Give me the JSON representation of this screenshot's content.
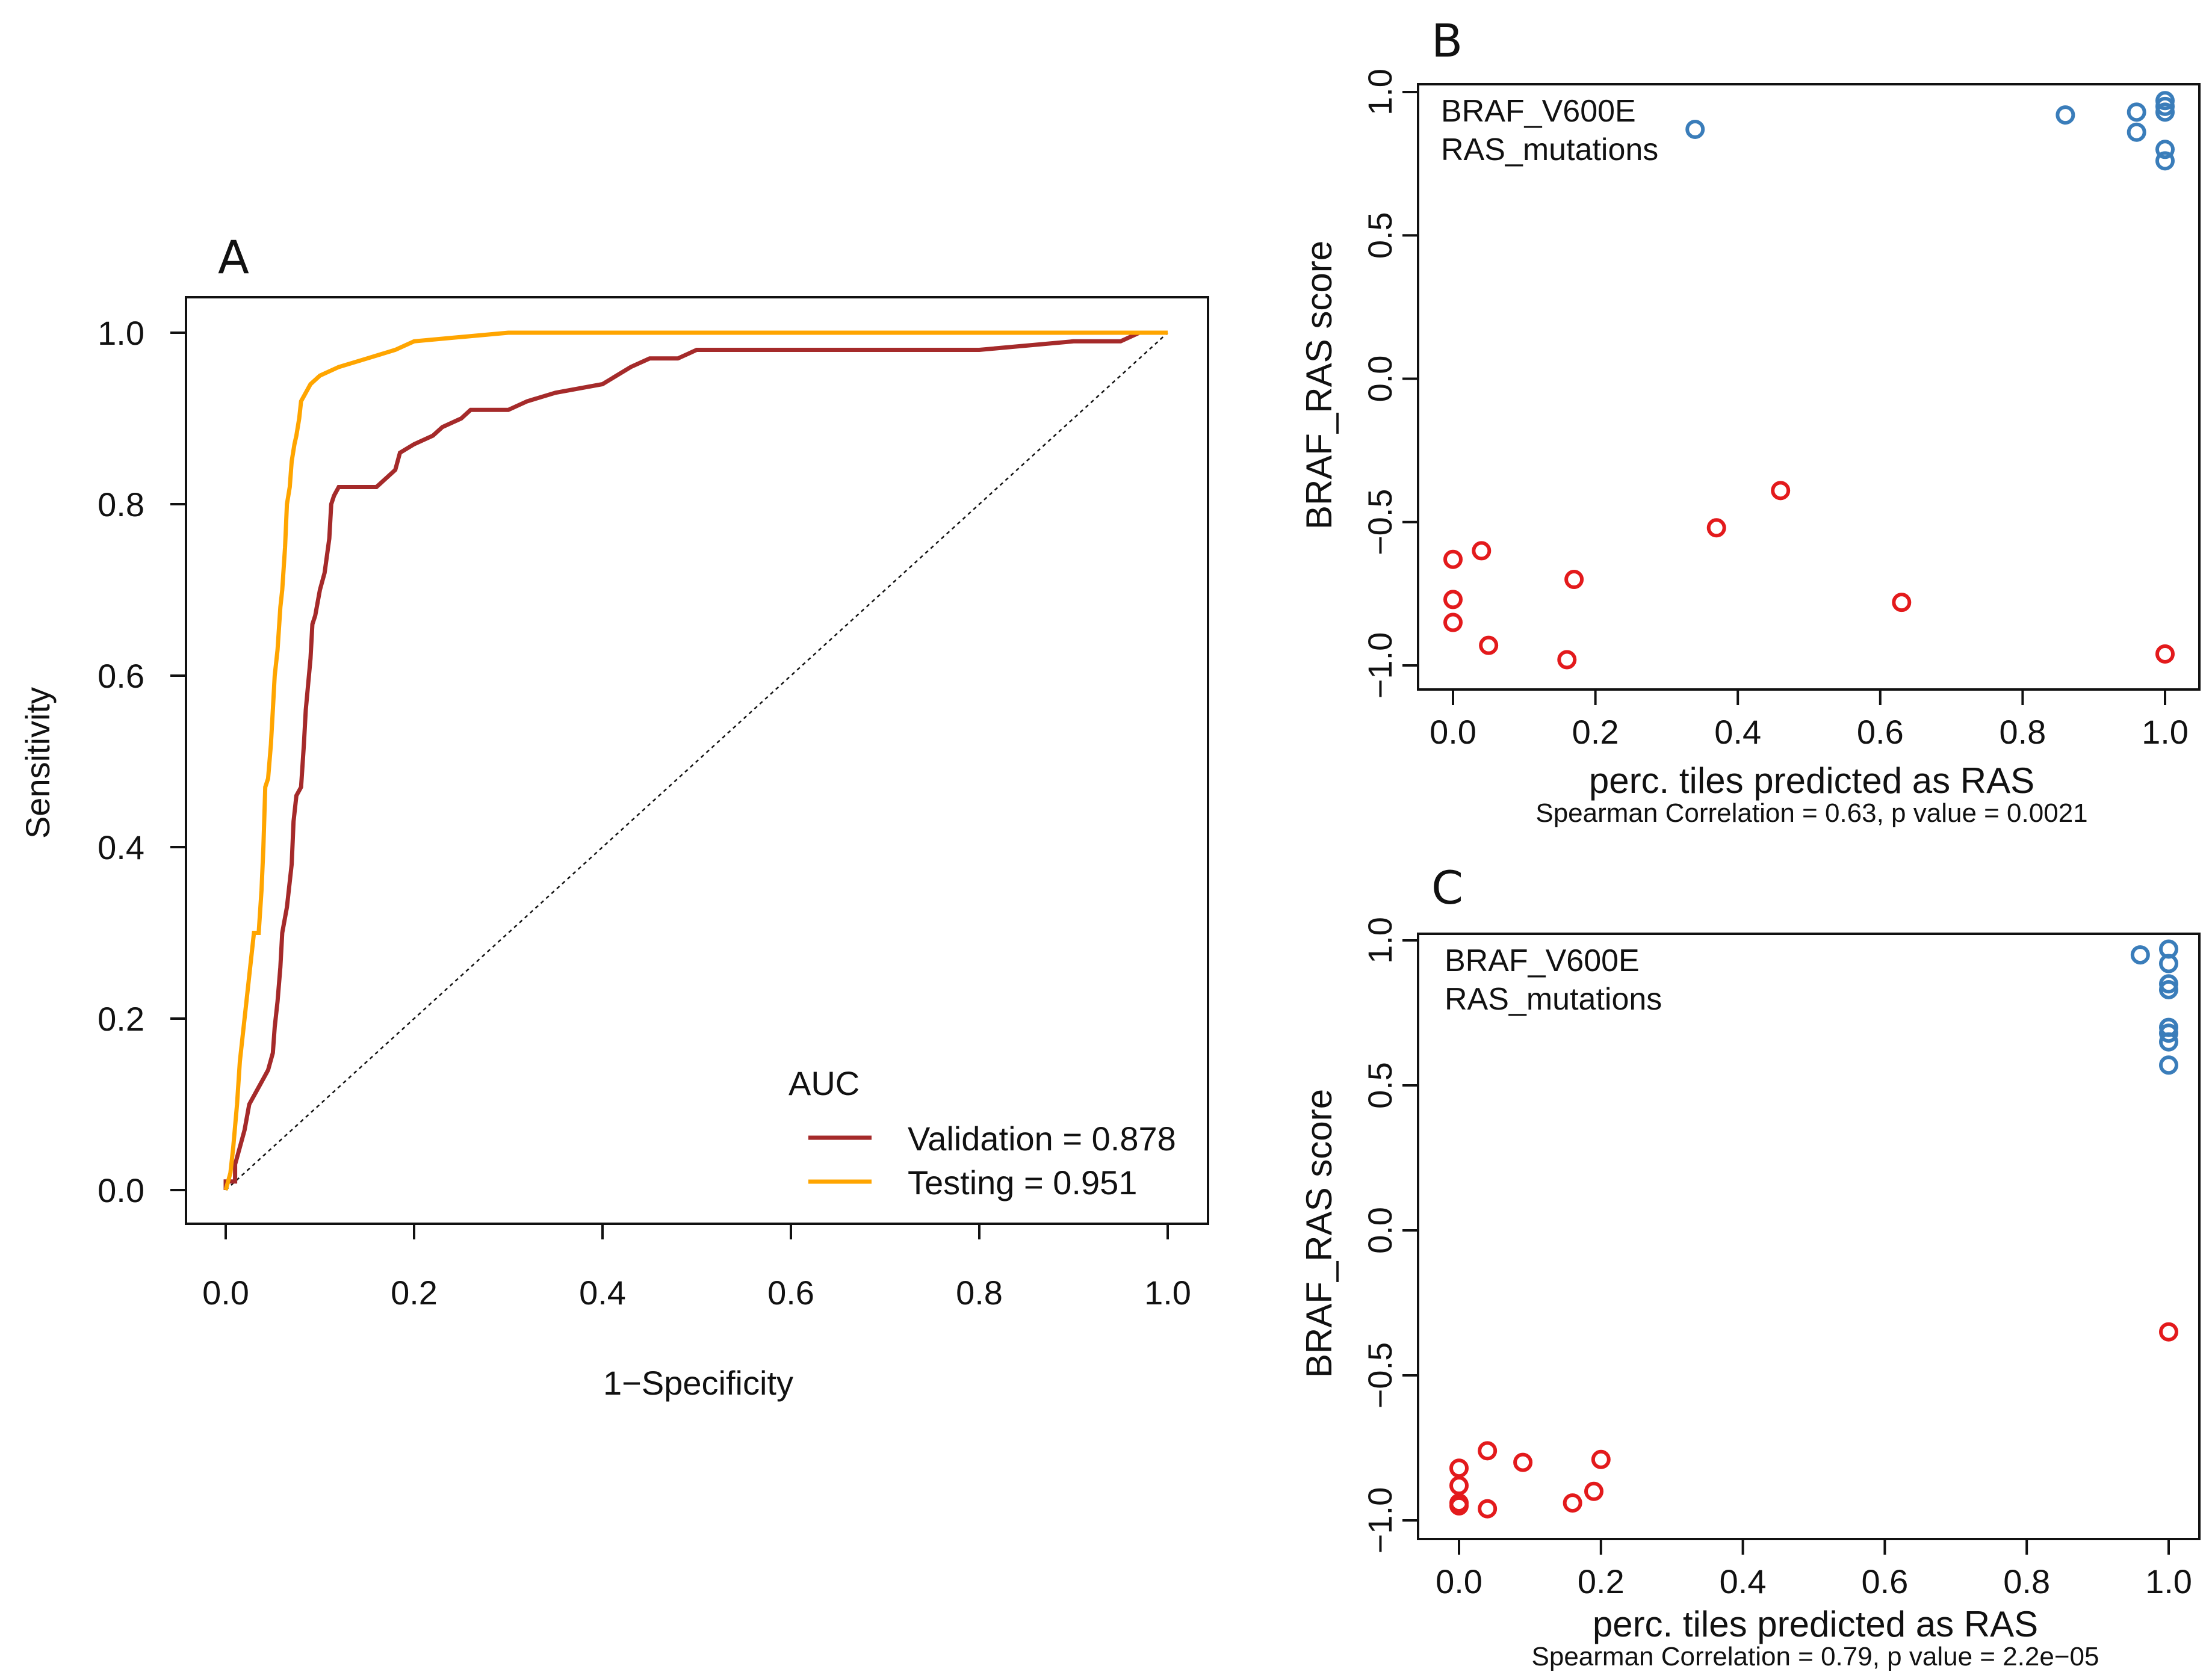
{
  "colors": {
    "validation": "#A52A2A",
    "testing": "#FFA500",
    "braf": "#E31A1C",
    "ras": "#3A7DBA",
    "axis": "#111111"
  },
  "panels": {
    "a": "A",
    "b": "B",
    "c": "C"
  },
  "chart_data": [
    {
      "id": "roc",
      "type": "line",
      "panel": "A",
      "xlabel": "1−Specificity",
      "ylabel": "Sensitivity",
      "xlim": [
        0,
        1
      ],
      "ylim": [
        0,
        1
      ],
      "xticks": [
        "0.0",
        "0.2",
        "0.4",
        "0.6",
        "0.8",
        "1.0"
      ],
      "yticks": [
        "0.0",
        "0.2",
        "0.4",
        "0.6",
        "0.8",
        "1.0"
      ],
      "legend_title": "AUC",
      "legend_position": "bottom-right",
      "reference_line": "diagonal-dotted",
      "series": [
        {
          "name": "Validation = 0.878",
          "color": "#A52A2A",
          "points": [
            [
              0,
              0
            ],
            [
              0,
              0.01
            ],
            [
              0.01,
              0.01
            ],
            [
              0.01,
              0.03
            ],
            [
              0.015,
              0.05
            ],
            [
              0.02,
              0.07
            ],
            [
              0.025,
              0.1
            ],
            [
              0.03,
              0.11
            ],
            [
              0.035,
              0.12
            ],
            [
              0.04,
              0.13
            ],
            [
              0.045,
              0.14
            ],
            [
              0.05,
              0.16
            ],
            [
              0.052,
              0.19
            ],
            [
              0.055,
              0.22
            ],
            [
              0.058,
              0.26
            ],
            [
              0.06,
              0.3
            ],
            [
              0.065,
              0.33
            ],
            [
              0.07,
              0.38
            ],
            [
              0.072,
              0.43
            ],
            [
              0.075,
              0.46
            ],
            [
              0.08,
              0.47
            ],
            [
              0.083,
              0.52
            ],
            [
              0.085,
              0.56
            ],
            [
              0.09,
              0.62
            ],
            [
              0.092,
              0.66
            ],
            [
              0.095,
              0.67
            ],
            [
              0.1,
              0.7
            ],
            [
              0.105,
              0.72
            ],
            [
              0.11,
              0.76
            ],
            [
              0.112,
              0.8
            ],
            [
              0.115,
              0.81
            ],
            [
              0.12,
              0.82
            ],
            [
              0.13,
              0.82
            ],
            [
              0.15,
              0.82
            ],
            [
              0.16,
              0.82
            ],
            [
              0.17,
              0.83
            ],
            [
              0.18,
              0.84
            ],
            [
              0.185,
              0.86
            ],
            [
              0.2,
              0.87
            ],
            [
              0.22,
              0.88
            ],
            [
              0.23,
              0.89
            ],
            [
              0.25,
              0.9
            ],
            [
              0.26,
              0.91
            ],
            [
              0.3,
              0.91
            ],
            [
              0.32,
              0.92
            ],
            [
              0.35,
              0.93
            ],
            [
              0.4,
              0.94
            ],
            [
              0.43,
              0.96
            ],
            [
              0.45,
              0.97
            ],
            [
              0.48,
              0.97
            ],
            [
              0.5,
              0.98
            ],
            [
              0.6,
              0.98
            ],
            [
              0.8,
              0.98
            ],
            [
              0.9,
              0.99
            ],
            [
              0.95,
              0.99
            ],
            [
              0.97,
              1.0
            ],
            [
              1,
              1
            ]
          ]
        },
        {
          "name": "Testing = 0.951",
          "color": "#FFA500",
          "points": [
            [
              0,
              0
            ],
            [
              0.005,
              0.02
            ],
            [
              0.008,
              0.05
            ],
            [
              0.012,
              0.1
            ],
            [
              0.015,
              0.15
            ],
            [
              0.02,
              0.2
            ],
            [
              0.025,
              0.25
            ],
            [
              0.03,
              0.3
            ],
            [
              0.035,
              0.3
            ],
            [
              0.038,
              0.35
            ],
            [
              0.04,
              0.4
            ],
            [
              0.042,
              0.47
            ],
            [
              0.045,
              0.48
            ],
            [
              0.048,
              0.52
            ],
            [
              0.05,
              0.56
            ],
            [
              0.052,
              0.6
            ],
            [
              0.055,
              0.63
            ],
            [
              0.058,
              0.68
            ],
            [
              0.06,
              0.7
            ],
            [
              0.063,
              0.75
            ],
            [
              0.065,
              0.8
            ],
            [
              0.068,
              0.82
            ],
            [
              0.07,
              0.85
            ],
            [
              0.073,
              0.87
            ],
            [
              0.075,
              0.88
            ],
            [
              0.078,
              0.9
            ],
            [
              0.08,
              0.92
            ],
            [
              0.085,
              0.93
            ],
            [
              0.09,
              0.94
            ],
            [
              0.1,
              0.95
            ],
            [
              0.12,
              0.96
            ],
            [
              0.15,
              0.97
            ],
            [
              0.18,
              0.98
            ],
            [
              0.2,
              0.99
            ],
            [
              0.25,
              0.995
            ],
            [
              0.3,
              1.0
            ],
            [
              1,
              1
            ]
          ]
        }
      ]
    },
    {
      "id": "scatterB",
      "type": "scatter",
      "panel": "B",
      "xlabel": "perc. tiles predicted as RAS",
      "ylabel": "BRAF_RAS score",
      "subtitle": "Spearman Correlation = 0.63, p value = 0.0021",
      "xlim": [
        0,
        1
      ],
      "ylim": [
        -1,
        1
      ],
      "xticks": [
        "0.0",
        "0.2",
        "0.4",
        "0.6",
        "0.8",
        "1.0"
      ],
      "yticks": [
        "−1.0",
        "−0.5",
        "0.0",
        "0.5",
        "1.0"
      ],
      "legend_position": "top-left",
      "series": [
        {
          "name": "BRAF_V600E",
          "color": "#E31A1C",
          "points": [
            [
              0,
              -0.63
            ],
            [
              0.04,
              -0.6
            ],
            [
              0,
              -0.77
            ],
            [
              0,
              -0.85
            ],
            [
              0.05,
              -0.93
            ],
            [
              0.16,
              -0.98
            ],
            [
              0.17,
              -0.7
            ],
            [
              0.37,
              -0.52
            ],
            [
              0.46,
              -0.39
            ],
            [
              0.63,
              -0.78
            ],
            [
              1,
              -0.96
            ]
          ]
        },
        {
          "name": "RAS_mutations",
          "color": "#3A7DBA",
          "points": [
            [
              0.34,
              0.87
            ],
            [
              0.86,
              0.92
            ],
            [
              0.96,
              0.93
            ],
            [
              0.96,
              0.86
            ],
            [
              1,
              0.97
            ],
            [
              1,
              0.95
            ],
            [
              1,
              0.93
            ],
            [
              1,
              0.8
            ],
            [
              1,
              0.76
            ]
          ]
        }
      ]
    },
    {
      "id": "scatterC",
      "type": "scatter",
      "panel": "C",
      "xlabel": "perc. tiles predicted as RAS",
      "ylabel": "BRAF_RAS score",
      "subtitle": "Spearman Correlation = 0.79, p value = 2.2e−05",
      "xlim": [
        0,
        1
      ],
      "ylim": [
        -1,
        1
      ],
      "xticks": [
        "0.0",
        "0.2",
        "0.4",
        "0.6",
        "0.8",
        "1.0"
      ],
      "yticks": [
        "−1.0",
        "−0.5",
        "0.0",
        "0.5",
        "1.0"
      ],
      "legend_position": "top-left",
      "series": [
        {
          "name": "BRAF_V600E",
          "color": "#E31A1C",
          "points": [
            [
              0,
              -0.82
            ],
            [
              0,
              -0.88
            ],
            [
              0,
              -0.94
            ],
            [
              0,
              -0.95
            ],
            [
              0.04,
              -0.76
            ],
            [
              0.04,
              -0.96
            ],
            [
              0.09,
              -0.8
            ],
            [
              0.16,
              -0.94
            ],
            [
              0.19,
              -0.9
            ],
            [
              0.2,
              -0.79
            ],
            [
              1,
              -0.35
            ]
          ]
        },
        {
          "name": "RAS_mutations",
          "color": "#3A7DBA",
          "points": [
            [
              0.96,
              0.95
            ],
            [
              1,
              0.97
            ],
            [
              1,
              0.92
            ],
            [
              1,
              0.85
            ],
            [
              1,
              0.83
            ],
            [
              1,
              0.7
            ],
            [
              1,
              0.68
            ],
            [
              1,
              0.65
            ],
            [
              1,
              0.57
            ]
          ]
        }
      ]
    }
  ]
}
